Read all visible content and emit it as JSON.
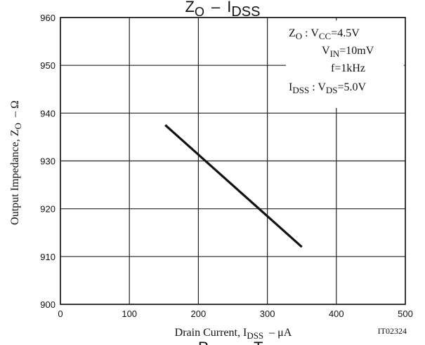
{
  "chart_data": {
    "type": "line",
    "title": {
      "main": "Z",
      "sub": "O",
      "sep": "–",
      "main2": "I",
      "sub2": "DSS"
    },
    "xlabel": {
      "pre": "Drain Current, I",
      "sub": "DSS",
      "post": "– μA"
    },
    "ylabel": {
      "pre": "Output Impedance, Z",
      "sub": "O",
      "post": "– Ω"
    },
    "xlim": [
      0,
      500
    ],
    "ylim": [
      900,
      960
    ],
    "xticks": [
      0,
      100,
      200,
      300,
      400,
      500
    ],
    "yticks": [
      900,
      910,
      920,
      930,
      940,
      950,
      960
    ],
    "grid": true,
    "series": [
      {
        "x": [
          152,
          350
        ],
        "y": [
          937.5,
          912
        ],
        "color": "#111111"
      }
    ],
    "code": "IT02324",
    "cut_text": "P",
    "cut_text2": "T",
    "legend": {
      "zo_label": "Z",
      "zo_sub": "O",
      "zo_colon": " : V",
      "vcc_sub": "CC",
      "vcc_val": "=4.5V",
      "vin_v": "V",
      "vin_sub": "IN",
      "vin_val": "=10mV",
      "freq": "f=1kHz",
      "idss_label": "I",
      "idss_sub": "DSS",
      "idss_colon": " : V",
      "vds_sub": "DS",
      "vds_val": "=5.0V"
    }
  }
}
